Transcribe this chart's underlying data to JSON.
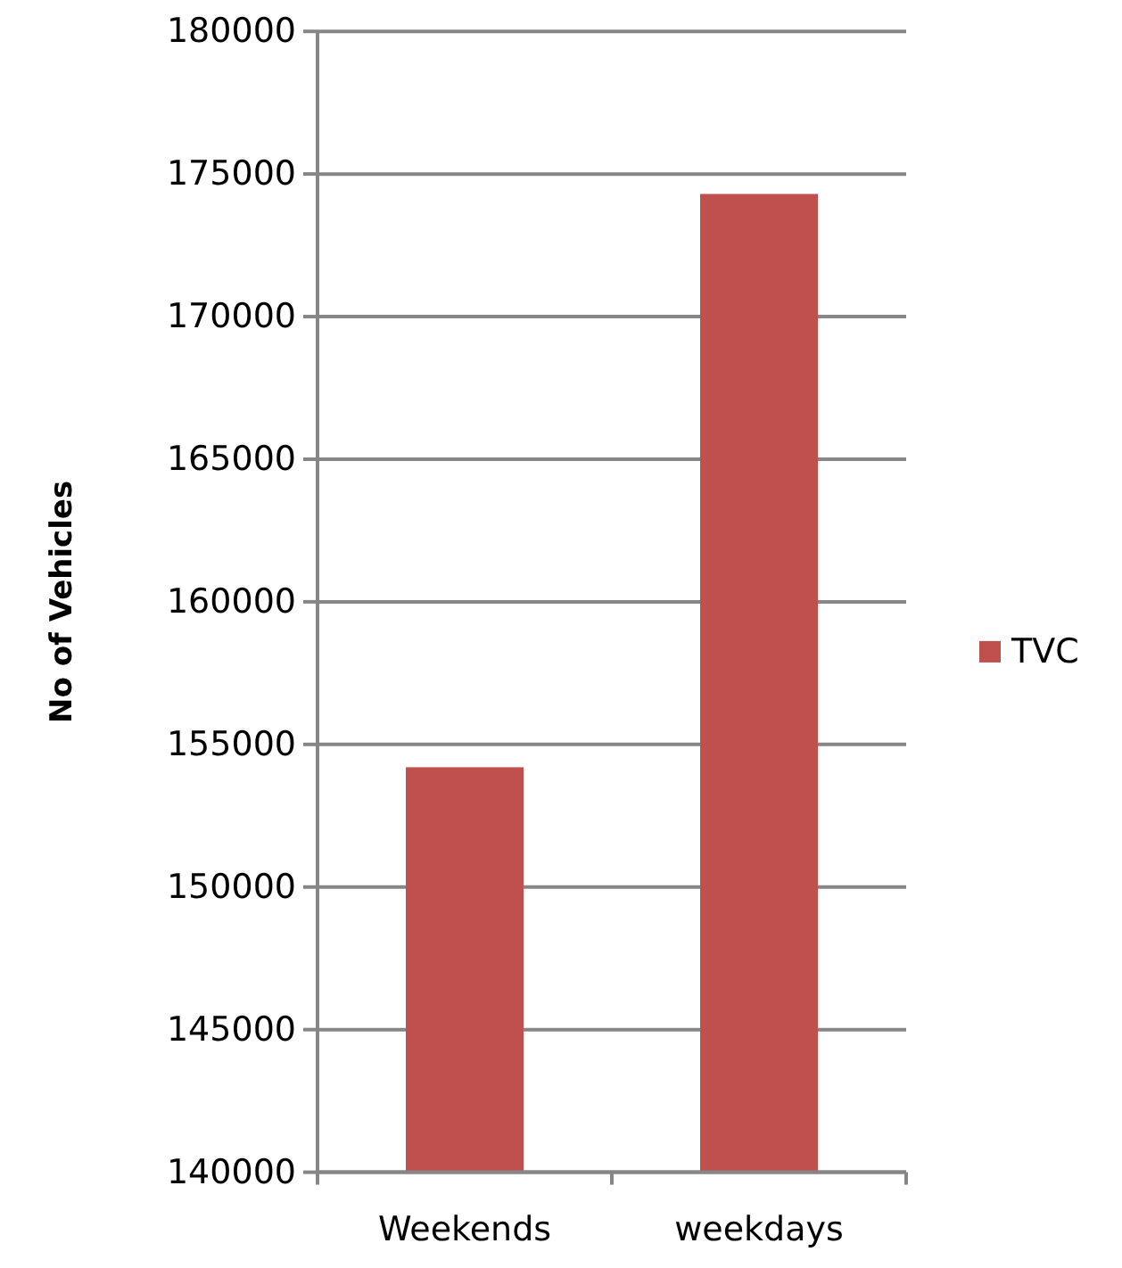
{
  "chart_data": {
    "type": "bar",
    "ylabel": "No of Vehicles",
    "categories": [
      "Weekends",
      "weekdays"
    ],
    "series": [
      {
        "name": "TVC",
        "color": "#c0504d",
        "values": [
          154200,
          174300
        ]
      }
    ],
    "ylim": [
      140000,
      180000
    ],
    "yticks": [
      140000,
      145000,
      150000,
      155000,
      160000,
      165000,
      170000,
      175000,
      180000
    ],
    "grid": "y",
    "legend": "right"
  }
}
